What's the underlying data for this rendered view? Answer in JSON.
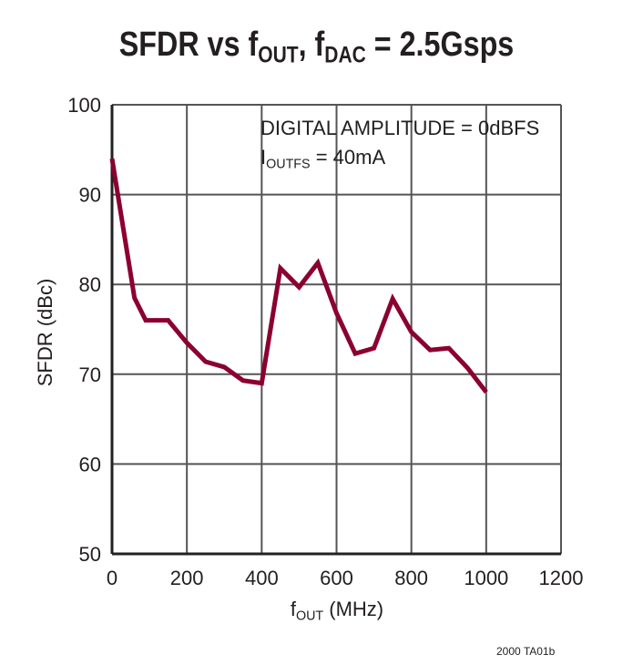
{
  "chart_data": {
    "type": "line",
    "title": {
      "main": "SFDR vs f",
      "sub1": "OUT",
      "mid": ", f",
      "sub2": "DAC",
      "end": " = 2.5Gsps"
    },
    "xlabel": {
      "main": "f",
      "sub": "OUT",
      "end": " (MHz)"
    },
    "ylabel": "SFDR (dBc)",
    "xlim": [
      0,
      1200
    ],
    "ylim": [
      50,
      100
    ],
    "xticks": [
      0,
      200,
      400,
      600,
      800,
      1000,
      1200
    ],
    "yticks": [
      50,
      60,
      70,
      80,
      90,
      100
    ],
    "grid": true,
    "annotations": {
      "line1": "DIGITAL AMPLITUDE = 0dBFS",
      "line2_main": "I",
      "line2_sub": "OUTFS",
      "line2_end": " = 40mA"
    },
    "series": [
      {
        "color": "#8b0030",
        "x": [
          0,
          60,
          90,
          150,
          200,
          250,
          300,
          350,
          400,
          450,
          500,
          550,
          600,
          650,
          700,
          750,
          800,
          850,
          900,
          950,
          1000
        ],
        "y": [
          94,
          78.5,
          76,
          76,
          73.5,
          71.4,
          70.8,
          69.3,
          69,
          81.8,
          79.7,
          82.4,
          76.8,
          72.3,
          72.9,
          78.4,
          74.7,
          72.7,
          72.9,
          70.7,
          68
        ]
      }
    ],
    "figure_code": "2000 TA01b"
  }
}
